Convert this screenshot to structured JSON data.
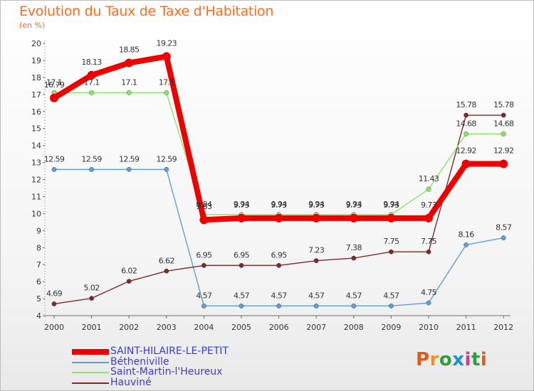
{
  "title": "Evolution du Taux de Taxe d'Habitation",
  "subtitle": "(en %)",
  "logo": {
    "text": "Proxiti",
    "colors": [
      "#e05a1a",
      "#e8932a",
      "#2e9d3a",
      "#1e8fd6",
      "#d83a8c",
      "#2e9d3a",
      "#e05a1a"
    ]
  },
  "chart_data": {
    "type": "line",
    "title": "Evolution du Taux de Taxe d'Habitation",
    "ylabel": "(en %)",
    "x": [
      "2000",
      "2001",
      "2002",
      "2003",
      "2004",
      "2005",
      "2006",
      "2007",
      "2008",
      "2009",
      "2010",
      "2011",
      "2012"
    ],
    "ylim": [
      4,
      20
    ],
    "yticks": [
      "4",
      "5",
      "6",
      "7",
      "8",
      "9",
      "10",
      "11",
      "12",
      "13",
      "14",
      "15",
      "16",
      "17",
      "18",
      "19",
      "20"
    ],
    "grid": false,
    "legend_position": "bottom-left",
    "series": [
      {
        "name": "SAINT-HILAIRE-LE-PETIT",
        "color": "#ee0000",
        "values": [
          16.79,
          18.13,
          18.85,
          19.23,
          9.63,
          9.73,
          9.73,
          9.73,
          9.73,
          9.73,
          9.73,
          12.92,
          12.92
        ],
        "labels": [
          "16.79",
          "18.13",
          "18.85",
          "19.23",
          "9.63",
          "9.73",
          "9.73",
          "9.73",
          "9.73",
          "9.73",
          "9.73",
          "12.92",
          "12.92"
        ]
      },
      {
        "name": "Bétheniville",
        "color": "#5f9fd3",
        "values": [
          12.59,
          12.59,
          12.59,
          12.59,
          4.57,
          4.57,
          4.57,
          4.57,
          4.57,
          4.57,
          4.75,
          8.16,
          8.57
        ],
        "labels": [
          "12.59",
          "12.59",
          "12.59",
          "12.59",
          "4.57",
          "4.57",
          "4.57",
          "4.57",
          "4.57",
          "4.57",
          "4.75",
          "8.16",
          "8.57"
        ]
      },
      {
        "name": "Saint-Martin-l'Heureux",
        "color": "#8fe36b",
        "values": [
          17.1,
          17.1,
          17.1,
          17.1,
          9.94,
          9.94,
          9.94,
          9.94,
          9.94,
          9.94,
          11.43,
          14.68,
          14.68
        ],
        "labels": [
          "17.1",
          "17.1",
          "17.1",
          "17.1",
          "9.94",
          "9.94",
          "9.94",
          "9.94",
          "9.94",
          "9.94",
          "11.43",
          "14.68",
          "14.68"
        ]
      },
      {
        "name": "Hauviné",
        "color": "#7a2a2a",
        "values": [
          4.69,
          5.02,
          6.02,
          6.62,
          6.95,
          6.95,
          6.95,
          7.23,
          7.38,
          7.75,
          7.75,
          15.78,
          15.78
        ],
        "labels": [
          "4.69",
          "5.02",
          "6.02",
          "6.62",
          "6.95",
          "6.95",
          "6.95",
          "7.23",
          "7.38",
          "7.75",
          "7.75",
          "15.78",
          "15.78"
        ]
      }
    ]
  }
}
